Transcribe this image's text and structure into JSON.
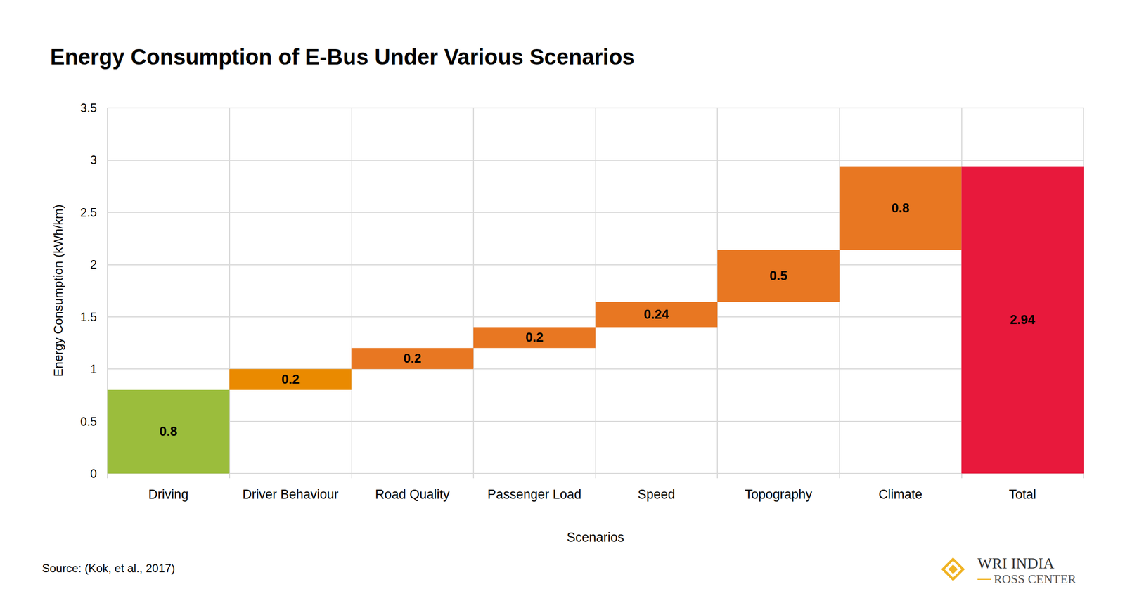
{
  "chart_data": {
    "type": "waterfall",
    "title": "Energy Consumption of E-Bus Under Various Scenarios",
    "x_label": "Scenarios",
    "y_label": "Energy Consumption (kWh/km)",
    "source": "Source: (Kok, et al., 2017)",
    "logo_text": [
      "WRI INDIA",
      "ROSS CENTER"
    ],
    "categories": [
      "Driving",
      "Driver Behaviour",
      "Road Quality",
      "Passenger Load",
      "Speed",
      "Topography",
      "Climate",
      "Total"
    ],
    "values": [
      0.8,
      0.2,
      0.2,
      0.2,
      0.24,
      0.5,
      0.8,
      2.94
    ],
    "colors": [
      "#9bbd3c",
      "#ea8a00",
      "#e87722",
      "#e87722",
      "#e87722",
      "#e87722",
      "#e87722",
      "#e8193c"
    ],
    "ylim": [
      0,
      3.5
    ],
    "yticks": [
      0,
      0.5,
      1,
      1.5,
      2,
      2.5,
      3,
      3.5
    ],
    "grid": true,
    "stacked": true,
    "data_labels": true
  }
}
